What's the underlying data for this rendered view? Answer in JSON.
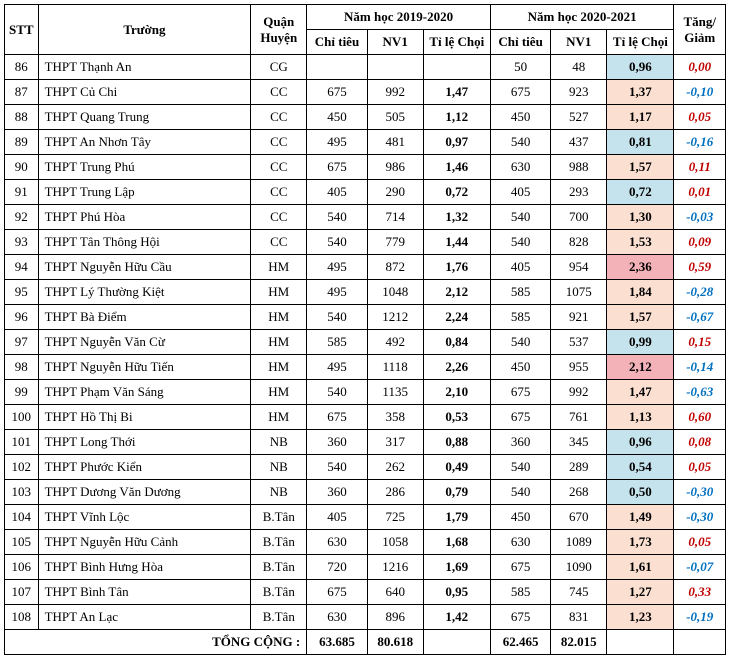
{
  "header": {
    "stt": "STT",
    "truong": "Trường",
    "quan": "Quận Huyện",
    "year1": "Năm học 2019-2020",
    "year2": "Năm học 2020-2021",
    "chitieu": "Chỉ tiêu",
    "nv1": "NV1",
    "tichoi": "Tỉ lệ Chọi",
    "diff": "Tăng/ Giảm"
  },
  "rows": [
    {
      "stt": "86",
      "name": "THPT Thạnh An",
      "q": "CG",
      "c1": "",
      "n1": "",
      "r1": "",
      "c2": "50",
      "n2": "48",
      "r2": "0,96",
      "rc": "blue",
      "d": "0,00",
      "dp": true
    },
    {
      "stt": "87",
      "name": "THPT Củ Chi",
      "q": "CC",
      "c1": "675",
      "n1": "992",
      "r1": "1,47",
      "c2": "675",
      "n2": "923",
      "r2": "1,37",
      "rc": "orange",
      "d": "-0,10",
      "dp": false
    },
    {
      "stt": "88",
      "name": "THPT Quang Trung",
      "q": "CC",
      "c1": "450",
      "n1": "505",
      "r1": "1,12",
      "c2": "450",
      "n2": "527",
      "r2": "1,17",
      "rc": "orange",
      "d": "0,05",
      "dp": true
    },
    {
      "stt": "89",
      "name": "THPT An Nhơn Tây",
      "q": "CC",
      "c1": "495",
      "n1": "481",
      "r1": "0,97",
      "c2": "540",
      "n2": "437",
      "r2": "0,81",
      "rc": "blue",
      "d": "-0,16",
      "dp": false
    },
    {
      "stt": "90",
      "name": "THPT Trung Phú",
      "q": "CC",
      "c1": "675",
      "n1": "986",
      "r1": "1,46",
      "c2": "630",
      "n2": "988",
      "r2": "1,57",
      "rc": "orange",
      "d": "0,11",
      "dp": true
    },
    {
      "stt": "91",
      "name": "THPT Trung Lập",
      "q": "CC",
      "c1": "405",
      "n1": "290",
      "r1": "0,72",
      "c2": "405",
      "n2": "293",
      "r2": "0,72",
      "rc": "blue",
      "d": "0,01",
      "dp": true
    },
    {
      "stt": "92",
      "name": "THPT Phú Hòa",
      "q": "CC",
      "c1": "540",
      "n1": "714",
      "r1": "1,32",
      "c2": "540",
      "n2": "700",
      "r2": "1,30",
      "rc": "orange",
      "d": "-0,03",
      "dp": false
    },
    {
      "stt": "93",
      "name": "THPT Tân Thông Hội",
      "q": "CC",
      "c1": "540",
      "n1": "779",
      "r1": "1,44",
      "c2": "540",
      "n2": "828",
      "r2": "1,53",
      "rc": "orange",
      "d": "0,09",
      "dp": true
    },
    {
      "stt": "94",
      "name": "THPT Nguyễn Hữu Cầu",
      "q": "HM",
      "c1": "495",
      "n1": "872",
      "r1": "1,76",
      "c2": "405",
      "n2": "954",
      "r2": "2,36",
      "rc": "red",
      "d": "0,59",
      "dp": true
    },
    {
      "stt": "95",
      "name": "THPT Lý Thường Kiệt",
      "q": "HM",
      "c1": "495",
      "n1": "1048",
      "r1": "2,12",
      "c2": "585",
      "n2": "1075",
      "r2": "1,84",
      "rc": "orange",
      "d": "-0,28",
      "dp": false
    },
    {
      "stt": "96",
      "name": "THPT Bà Điểm",
      "q": "HM",
      "c1": "540",
      "n1": "1212",
      "r1": "2,24",
      "c2": "585",
      "n2": "921",
      "r2": "1,57",
      "rc": "orange",
      "d": "-0,67",
      "dp": false
    },
    {
      "stt": "97",
      "name": "THPT Nguyễn Văn Cừ",
      "q": "HM",
      "c1": "585",
      "n1": "492",
      "r1": "0,84",
      "c2": "540",
      "n2": "537",
      "r2": "0,99",
      "rc": "blue",
      "d": "0,15",
      "dp": true
    },
    {
      "stt": "98",
      "name": "THPT Nguyễn Hữu Tiến",
      "q": "HM",
      "c1": "495",
      "n1": "1118",
      "r1": "2,26",
      "c2": "450",
      "n2": "955",
      "r2": "2,12",
      "rc": "red",
      "d": "-0,14",
      "dp": false
    },
    {
      "stt": "99",
      "name": "THPT Phạm Văn Sáng",
      "q": "HM",
      "c1": "540",
      "n1": "1135",
      "r1": "2,10",
      "c2": "675",
      "n2": "992",
      "r2": "1,47",
      "rc": "orange",
      "d": "-0,63",
      "dp": false
    },
    {
      "stt": "100",
      "name": "THPT Hồ Thị Bi",
      "q": "HM",
      "c1": "675",
      "n1": "358",
      "r1": "0,53",
      "c2": "675",
      "n2": "761",
      "r2": "1,13",
      "rc": "orange",
      "d": "0,60",
      "dp": true
    },
    {
      "stt": "101",
      "name": "THPT Long Thới",
      "q": "NB",
      "c1": "360",
      "n1": "317",
      "r1": "0,88",
      "c2": "360",
      "n2": "345",
      "r2": "0,96",
      "rc": "blue",
      "d": "0,08",
      "dp": true
    },
    {
      "stt": "102",
      "name": "THPT Phước Kiển",
      "q": "NB",
      "c1": "540",
      "n1": "262",
      "r1": "0,49",
      "c2": "540",
      "n2": "289",
      "r2": "0,54",
      "rc": "blue",
      "d": "0,05",
      "dp": true
    },
    {
      "stt": "103",
      "name": "THPT Dương Văn Dương",
      "q": "NB",
      "c1": "360",
      "n1": "286",
      "r1": "0,79",
      "c2": "540",
      "n2": "268",
      "r2": "0,50",
      "rc": "blue",
      "d": "-0,30",
      "dp": false
    },
    {
      "stt": "104",
      "name": "THPT Vĩnh Lộc",
      "q": "B.Tân",
      "c1": "405",
      "n1": "725",
      "r1": "1,79",
      "c2": "450",
      "n2": "670",
      "r2": "1,49",
      "rc": "orange",
      "d": "-0,30",
      "dp": false
    },
    {
      "stt": "105",
      "name": "THPT Nguyễn Hữu Cảnh",
      "q": "B.Tân",
      "c1": "630",
      "n1": "1058",
      "r1": "1,68",
      "c2": "630",
      "n2": "1089",
      "r2": "1,73",
      "rc": "orange",
      "d": "0,05",
      "dp": true
    },
    {
      "stt": "106",
      "name": "THPT Bình Hưng Hòa",
      "q": "B.Tân",
      "c1": "720",
      "n1": "1216",
      "r1": "1,69",
      "c2": "675",
      "n2": "1090",
      "r2": "1,61",
      "rc": "orange",
      "d": "-0,07",
      "dp": false
    },
    {
      "stt": "107",
      "name": "THPT Bình Tân",
      "q": "B.Tân",
      "c1": "675",
      "n1": "640",
      "r1": "0,95",
      "c2": "585",
      "n2": "745",
      "r2": "1,27",
      "rc": "orange",
      "d": "0,33",
      "dp": true
    },
    {
      "stt": "108",
      "name": "THPT An Lạc",
      "q": "B.Tân",
      "c1": "630",
      "n1": "896",
      "r1": "1,42",
      "c2": "675",
      "n2": "831",
      "r2": "1,23",
      "rc": "orange",
      "d": "-0,19",
      "dp": false
    }
  ],
  "total": {
    "label": "TỔNG CỘNG :",
    "c1": "63.685",
    "n1": "80.618",
    "r1": "",
    "c2": "62.465",
    "n2": "82.015",
    "r2": "",
    "d": ""
  },
  "colors": {
    "blue": "#c5e3ec",
    "orange": "#fbe0d2",
    "red": "#f2b2b8"
  }
}
